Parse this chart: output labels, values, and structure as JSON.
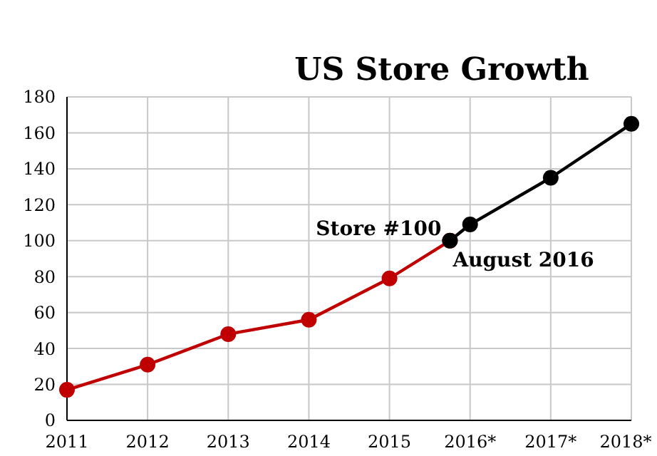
{
  "chart_data": {
    "type": "line",
    "title": "US Store Growth",
    "xlim": [
      2011,
      2018
    ],
    "xticks": [
      2011,
      2012,
      2013,
      2014,
      2015,
      {
        "value": 2016,
        "label": "2016*"
      },
      {
        "value": 2017,
        "label": "2017*"
      },
      {
        "value": 2018,
        "label": "2018*"
      }
    ],
    "ylim": [
      0,
      180
    ],
    "yticks": [
      0,
      20,
      40,
      60,
      80,
      100,
      120,
      140,
      160,
      180
    ],
    "grid": true,
    "marker": "circle",
    "line_style": "solid",
    "series": [
      {
        "color": "#c00000",
        "x": [
          2011,
          2012,
          2013,
          2014,
          2015,
          2015.75
        ],
        "values": [
          17,
          31,
          48,
          56,
          79,
          100
        ]
      },
      {
        "color": "#000000",
        "x": [
          2015.75,
          2016,
          2017,
          2018
        ],
        "values": [
          100,
          109,
          135,
          165
        ]
      }
    ],
    "annotations": [
      {
        "text": "Store #100",
        "x": 2015.75,
        "y": 100
      },
      "August 2016"
    ]
  }
}
